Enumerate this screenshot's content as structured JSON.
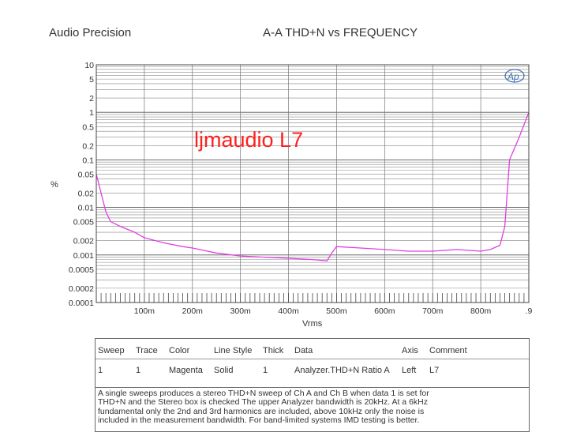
{
  "header": {
    "brand": "Audio Precision",
    "title": "A-A THD+N vs FREQUENCY",
    "logo_text": "Ap"
  },
  "chart_data": {
    "type": "line",
    "title": "A-A THD+N vs FREQUENCY",
    "watermark": "ljmaudio  L7",
    "xlabel": "Vrms",
    "ylabel": "%",
    "x_scale": "linear",
    "y_scale": "log",
    "xlim": [
      0,
      0.9
    ],
    "ylim": [
      0.0001,
      10
    ],
    "x_ticks": [
      {
        "value": 0.1,
        "label": "100m"
      },
      {
        "value": 0.2,
        "label": "200m"
      },
      {
        "value": 0.3,
        "label": "300m"
      },
      {
        "value": 0.4,
        "label": "400m"
      },
      {
        "value": 0.5,
        "label": "500m"
      },
      {
        "value": 0.6,
        "label": "600m"
      },
      {
        "value": 0.7,
        "label": "700m"
      },
      {
        "value": 0.8,
        "label": "800m"
      },
      {
        "value": 0.9,
        "label": ".9"
      }
    ],
    "y_ticks": [
      {
        "value": 10,
        "label": "10"
      },
      {
        "value": 5,
        "label": "5"
      },
      {
        "value": 2,
        "label": "2"
      },
      {
        "value": 1,
        "label": "1"
      },
      {
        "value": 0.5,
        "label": "0.5"
      },
      {
        "value": 0.2,
        "label": "0.2"
      },
      {
        "value": 0.1,
        "label": "0.1"
      },
      {
        "value": 0.05,
        "label": "0.05"
      },
      {
        "value": 0.02,
        "label": "0.02"
      },
      {
        "value": 0.01,
        "label": "0.01"
      },
      {
        "value": 0.005,
        "label": "0.005"
      },
      {
        "value": 0.002,
        "label": "0.002"
      },
      {
        "value": 0.001,
        "label": "0.001"
      },
      {
        "value": 0.0005,
        "label": "0.0005"
      },
      {
        "value": 0.0002,
        "label": "0.0002"
      },
      {
        "value": 0.0001,
        "label": "0.0001"
      }
    ],
    "grid": true,
    "series": [
      {
        "color": "#e040e0",
        "x": [
          0.0,
          0.01,
          0.02,
          0.03,
          0.05,
          0.08,
          0.1,
          0.14,
          0.18,
          0.2,
          0.25,
          0.3,
          0.35,
          0.4,
          0.45,
          0.48,
          0.49,
          0.5,
          0.55,
          0.6,
          0.65,
          0.7,
          0.75,
          0.8,
          0.82,
          0.84,
          0.85,
          0.86,
          0.88,
          0.9
        ],
        "y": [
          0.05,
          0.02,
          0.008,
          0.005,
          0.004,
          0.003,
          0.0023,
          0.0018,
          0.0015,
          0.0014,
          0.0011,
          0.00095,
          0.0009,
          0.00085,
          0.0008,
          0.00075,
          0.0011,
          0.0015,
          0.0014,
          0.0013,
          0.0012,
          0.0012,
          0.0013,
          0.0012,
          0.0013,
          0.0016,
          0.004,
          0.1,
          0.3,
          1.0
        ]
      }
    ]
  },
  "legend_table": {
    "headers": [
      "Sweep",
      "Trace",
      "Color",
      "Line Style",
      "Thick",
      "Data",
      "Axis",
      "Comment"
    ],
    "row": [
      "1",
      "1",
      "Magenta",
      "Solid",
      "1",
      "Analyzer.THD+N Ratio A",
      "Left",
      "L7"
    ],
    "notes": [
      "A single sweeps produces a stereo THD+N sweep of Ch A and Ch B when data 1 is set for",
      "THD+N and the Stereo box is checked   The upper Analyzer bandwidth is 20kHz.  At a 6kHz",
      "fundamental only the 2nd and 3rd harmonics are included, above 10kHz only the noise is",
      "included in the measurement bandwidth.  For band-limited systems IMD testing is better."
    ]
  }
}
